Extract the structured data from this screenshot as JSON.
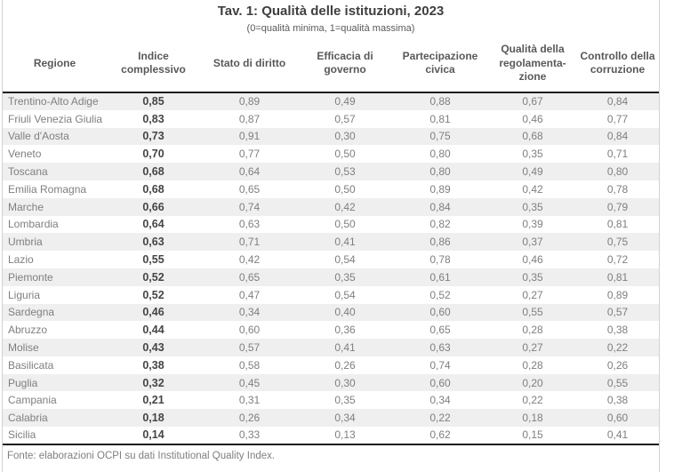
{
  "title": "Tav. 1: Qualità delle istituzioni, 2023",
  "subtitle": "(0=qualità minima, 1=qualità massima)",
  "footer": "Fonte: elaborazioni OCPI su dati Institutional Quality Index.",
  "colors": {
    "stripe": "#efefef",
    "body_text": "#7f7f7f",
    "bold_index_text": "#454545",
    "header_text": "#595959",
    "title_text": "#3f3f3f",
    "rule": "#1a1a1a",
    "frame": "#d2d2d2"
  },
  "chart_data": {
    "type": "table",
    "title": "Tav. 1: Qualità delle istituzioni, 2023",
    "subtitle": "(0=qualità minima, 1=qualità massima)",
    "columns": [
      "Regione",
      "Indice complessivo",
      "Stato di diritto",
      "Efficacia di governo",
      "Partecipazione civica",
      "Qualità della regolamenta-zione",
      "Controllo della corruzione"
    ],
    "bold_column_index": 1,
    "decimal_separator": ",",
    "rows": [
      [
        "Trentino-Alto Adige",
        "0,85",
        "0,89",
        "0,49",
        "0,88",
        "0,67",
        "0,84"
      ],
      [
        "Friuli Venezia Giulia",
        "0,83",
        "0,87",
        "0,57",
        "0,81",
        "0,46",
        "0,77"
      ],
      [
        "Valle d'Aosta",
        "0,73",
        "0,91",
        "0,30",
        "0,75",
        "0,68",
        "0,84"
      ],
      [
        "Veneto",
        "0,70",
        "0,77",
        "0,50",
        "0,80",
        "0,35",
        "0,71"
      ],
      [
        "Toscana",
        "0,68",
        "0,64",
        "0,53",
        "0,80",
        "0,49",
        "0,80"
      ],
      [
        "Emilia Romagna",
        "0,68",
        "0,65",
        "0,50",
        "0,89",
        "0,42",
        "0,78"
      ],
      [
        "Marche",
        "0,66",
        "0,74",
        "0,42",
        "0,84",
        "0,35",
        "0,79"
      ],
      [
        "Lombardia",
        "0,64",
        "0,63",
        "0,50",
        "0,82",
        "0,39",
        "0,81"
      ],
      [
        "Umbria",
        "0,63",
        "0,71",
        "0,41",
        "0,86",
        "0,37",
        "0,75"
      ],
      [
        "Lazio",
        "0,55",
        "0,42",
        "0,54",
        "0,78",
        "0,46",
        "0,72"
      ],
      [
        "Piemonte",
        "0,52",
        "0,65",
        "0,35",
        "0,61",
        "0,35",
        "0,81"
      ],
      [
        "Liguria",
        "0,52",
        "0,47",
        "0,54",
        "0,52",
        "0,27",
        "0,89"
      ],
      [
        "Sardegna",
        "0,46",
        "0,34",
        "0,40",
        "0,60",
        "0,55",
        "0,57"
      ],
      [
        "Abruzzo",
        "0,44",
        "0,60",
        "0,36",
        "0,65",
        "0,28",
        "0,38"
      ],
      [
        "Molise",
        "0,43",
        "0,57",
        "0,41",
        "0,63",
        "0,27",
        "0,22"
      ],
      [
        "Basilicata",
        "0,38",
        "0,58",
        "0,26",
        "0,74",
        "0,28",
        "0,26"
      ],
      [
        "Puglia",
        "0,32",
        "0,45",
        "0,30",
        "0,60",
        "0,20",
        "0,55"
      ],
      [
        "Campania",
        "0,21",
        "0,31",
        "0,35",
        "0,34",
        "0,22",
        "0,38"
      ],
      [
        "Calabria",
        "0,18",
        "0,26",
        "0,34",
        "0,22",
        "0,18",
        "0,60"
      ],
      [
        "Sicilia",
        "0,14",
        "0,33",
        "0,13",
        "0,62",
        "0,15",
        "0,41"
      ]
    ]
  }
}
